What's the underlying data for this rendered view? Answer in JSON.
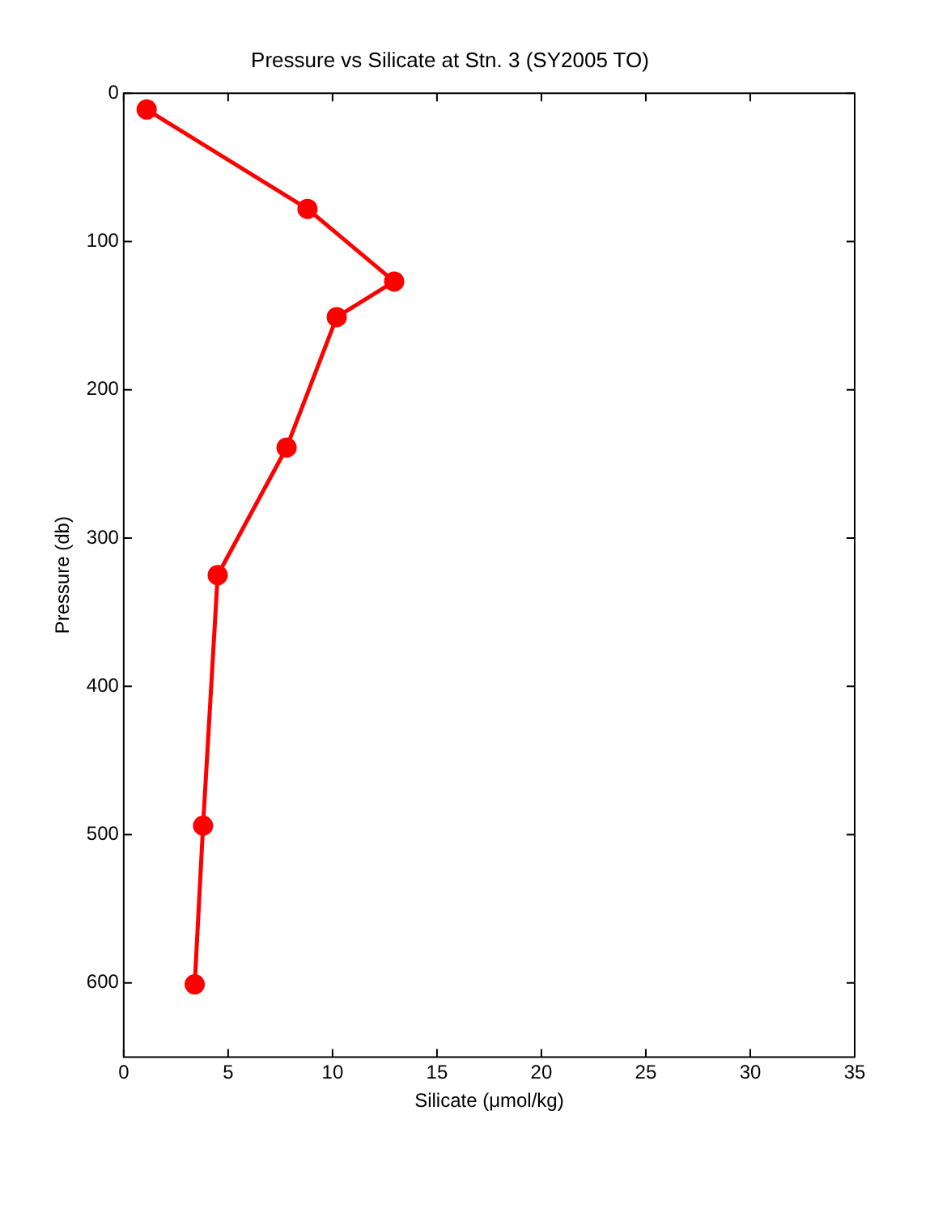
{
  "chart_data": {
    "type": "line",
    "title": "Pressure vs Silicate at Stn. 3 (SY2005 TO)",
    "xlabel": "Silicate (μmol/kg)",
    "ylabel": "Pressure (db)",
    "x": [
      1.1,
      8.8,
      12.95,
      10.2,
      7.8,
      4.5,
      3.8,
      3.4
    ],
    "series": [
      {
        "color": "#ff0000",
        "values": [
          11,
          78,
          127,
          151,
          239,
          325,
          494,
          601
        ]
      }
    ],
    "xlim": [
      0,
      35
    ],
    "xticks": [
      0,
      5,
      10,
      15,
      20,
      25,
      30,
      35
    ],
    "ylim": [
      650,
      0
    ],
    "yticks": [
      0,
      100,
      200,
      300,
      400,
      500,
      600
    ],
    "marker": "circle",
    "line_style": "solid",
    "grid": false,
    "legend": false
  }
}
